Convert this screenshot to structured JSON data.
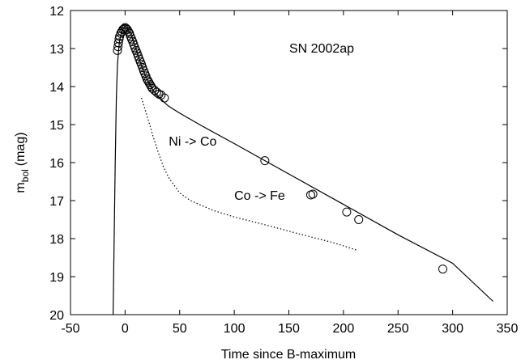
{
  "chart_data": {
    "type": "scatter",
    "title": "",
    "annotation": "SN 2002ap",
    "xlabel": "Time since B-maximum",
    "ylabel_main": "m",
    "ylabel_sub": "bol",
    "ylabel_unit": "(mag)",
    "xlim": [
      -50,
      350
    ],
    "ylim": [
      20,
      12
    ],
    "y_inverted": true,
    "grid": false,
    "x_ticks": [
      -50,
      0,
      50,
      100,
      150,
      200,
      250,
      300,
      350
    ],
    "y_ticks": [
      12,
      13,
      14,
      15,
      16,
      17,
      18,
      19,
      20
    ],
    "series": [
      {
        "style": "open-circle-markers",
        "points": [
          [
            -7,
            13.05
          ],
          [
            -6.5,
            12.95
          ],
          [
            -6,
            12.85
          ],
          [
            -5.5,
            12.75
          ],
          [
            -5,
            12.68
          ],
          [
            -4,
            12.6
          ],
          [
            -3,
            12.55
          ],
          [
            -2,
            12.5
          ],
          [
            -1,
            12.48
          ],
          [
            0,
            12.45
          ],
          [
            1,
            12.47
          ],
          [
            2,
            12.5
          ],
          [
            3,
            12.55
          ],
          [
            4,
            12.6
          ],
          [
            5,
            12.68
          ],
          [
            6,
            12.75
          ],
          [
            7,
            12.82
          ],
          [
            8,
            12.9
          ],
          [
            9,
            12.98
          ],
          [
            10,
            13.05
          ],
          [
            11,
            13.12
          ],
          [
            12,
            13.2
          ],
          [
            13,
            13.28
          ],
          [
            14,
            13.35
          ],
          [
            15,
            13.42
          ],
          [
            16,
            13.5
          ],
          [
            17,
            13.58
          ],
          [
            18,
            13.65
          ],
          [
            19,
            13.72
          ],
          [
            20,
            13.8
          ],
          [
            21,
            13.85
          ],
          [
            22,
            13.9
          ],
          [
            23,
            13.95
          ],
          [
            24,
            14.0
          ],
          [
            25,
            14.05
          ],
          [
            27,
            14.1
          ],
          [
            29,
            14.15
          ],
          [
            31,
            14.2
          ],
          [
            33,
            14.22
          ],
          [
            36,
            14.3
          ],
          [
            128,
            15.95
          ],
          [
            170,
            16.85
          ],
          [
            172,
            16.83
          ],
          [
            203,
            17.3
          ],
          [
            214,
            17.5
          ],
          [
            291,
            18.8
          ]
        ]
      },
      {
        "style": "solid-line",
        "points": [
          [
            -11,
            20
          ],
          [
            -10,
            18
          ],
          [
            -9,
            16
          ],
          [
            -8,
            14.3
          ],
          [
            -7,
            13.45
          ],
          [
            -6,
            13.05
          ],
          [
            -5,
            12.8
          ],
          [
            -4,
            12.65
          ],
          [
            -3,
            12.55
          ],
          [
            -2,
            12.49
          ],
          [
            -1,
            12.46
          ],
          [
            0,
            12.45
          ],
          [
            2,
            12.48
          ],
          [
            4,
            12.56
          ],
          [
            6,
            12.68
          ],
          [
            8,
            12.84
          ],
          [
            10,
            13.02
          ],
          [
            12,
            13.2
          ],
          [
            15,
            13.45
          ],
          [
            18,
            13.67
          ],
          [
            21,
            13.86
          ],
          [
            24,
            14.02
          ],
          [
            27,
            14.15
          ],
          [
            30,
            14.25
          ],
          [
            33,
            14.33
          ],
          [
            36,
            14.42
          ],
          [
            40,
            14.52
          ],
          [
            50,
            14.7
          ],
          [
            70,
            15.03
          ],
          [
            100,
            15.5
          ],
          [
            150,
            16.3
          ],
          [
            200,
            17.1
          ],
          [
            250,
            17.9
          ],
          [
            300,
            18.65
          ],
          [
            337,
            19.65
          ]
        ]
      },
      {
        "style": "dotted-line",
        "points": [
          [
            15,
            14.3
          ],
          [
            20,
            14.75
          ],
          [
            25,
            15.25
          ],
          [
            30,
            15.7
          ],
          [
            35,
            16.1
          ],
          [
            40,
            16.4
          ],
          [
            50,
            16.8
          ],
          [
            60,
            17.0
          ],
          [
            80,
            17.25
          ],
          [
            100,
            17.43
          ],
          [
            130,
            17.65
          ],
          [
            160,
            17.88
          ],
          [
            190,
            18.1
          ],
          [
            212,
            18.3
          ]
        ]
      }
    ],
    "labels": [
      {
        "text": "Ni -> Co",
        "x": 40,
        "y": 15.55
      },
      {
        "text": "Co -> Fe",
        "x": 100,
        "y": 16.98
      }
    ]
  }
}
